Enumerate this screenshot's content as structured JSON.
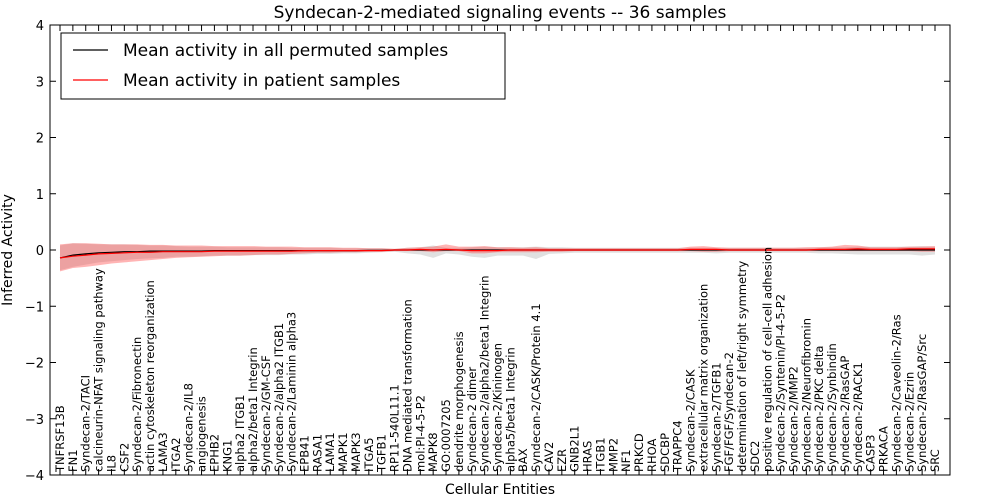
{
  "chart_data": {
    "type": "line",
    "title": "Syndecan-2-mediated signaling events -- 36 samples",
    "xlabel": "Cellular Entities",
    "ylabel": "Inferred Activity",
    "ylim": [
      -4,
      4
    ],
    "yticks": [
      "4",
      "3",
      "2",
      "1",
      "0",
      "−1",
      "−2",
      "−3",
      "−4"
    ],
    "categories": [
      "TNFRSF13B",
      "FN1",
      "Syndecan-2/TACI",
      "calcineurin-NFAT signaling pathway",
      "IL8",
      "CSF2",
      "Syndecan-2/Fibronectin",
      "actin cytoskeleton reorganization",
      "LAMA3",
      "ITGA2",
      "Syndecan-2/IL8",
      "angiogenesis",
      "EPHB2",
      "KNG1",
      "alpha2 ITGB1",
      "alpha2/beta1 Integrin",
      "Syndecan-2/GM-CSF",
      "Syndecan-2/alpha2 ITGB1",
      "Syndecan-2/Laminin alpha3",
      "EPB41",
      "RASA1",
      "LAMA1",
      "MAPK1",
      "MAPK3",
      "ITGA5",
      "TGFB1",
      "RP11-540L11.1",
      "DNA mediated transformation",
      "mol:PI-4-5-P2",
      "MAPK8",
      "GO:0007205",
      "dendrite morphogenesis",
      "Syndecan-2 dimer",
      "Syndecan-2/alpha2/beta1 Integrin",
      "Syndecan-2/Kininogen",
      "alpha5/beta1 Integrin",
      "BAX",
      "Syndecan-2/CASK/Protein 4.1",
      "CAV2",
      "EZR",
      "GNB2L1",
      "HRAS",
      "ITGB1",
      "MMP2",
      "NF1",
      "PRKCD",
      "RHOA",
      "SDCBP",
      "TRAPPC4",
      "Syndecan-2/CASK",
      "extracellular matrix organization",
      "Syndecan-2/TGFB1",
      "FGF/FGF/Syndecan-2",
      "determination of left/right symmetry",
      "SDC2",
      "positive regulation of cell-cell adhesion",
      "Syndecan-2/Syntenin/PI-4-5-P2",
      "Syndecan-2/MMP2",
      "Syndecan-2/Neurofibromin",
      "Syndecan-2/PKC delta",
      "Syndecan-2/Synbindin",
      "Syndecan-2/RasGAP",
      "Syndecan-2/RACK1",
      "CASP3",
      "PRKACA",
      "Syndecan-2/Caveolin-2/Ras",
      "Syndecan-2/Ezrin",
      "Syndecan-2/RasGAP/Src",
      "SRC"
    ],
    "series": [
      {
        "name": "Mean activity in all permuted samples",
        "color": "#000000",
        "values": [
          -0.14,
          -0.09,
          -0.07,
          -0.05,
          -0.04,
          -0.03,
          -0.03,
          -0.02,
          -0.02,
          -0.02,
          -0.02,
          -0.02,
          -0.01,
          -0.01,
          -0.01,
          -0.01,
          -0.01,
          -0.01,
          -0.01,
          -0.01,
          -0.01,
          -0.01,
          -0.01,
          -0.01,
          -0.005,
          -0.005,
          0.0,
          0.0,
          0.0,
          0.0,
          0.0,
          0.0,
          0.0,
          0.0,
          0.0,
          0.0,
          0.0,
          0.0,
          0.0,
          0.0,
          0.0,
          0.0,
          0.0,
          0.0,
          0.0,
          0.0,
          0.0,
          0.0,
          0.0,
          0.0,
          0.0,
          0.0,
          0.0,
          0.0,
          0.0,
          0.0,
          0.0,
          0.0,
          0.0,
          0.0,
          0.0,
          0.0,
          0.0,
          0.0,
          0.0,
          0.0,
          0.0,
          0.0,
          0.0
        ],
        "lower": [
          -0.36,
          -0.3,
          -0.26,
          -0.22,
          -0.2,
          -0.18,
          -0.16,
          -0.15,
          -0.14,
          -0.12,
          -0.12,
          -0.11,
          -0.1,
          -0.1,
          -0.1,
          -0.09,
          -0.09,
          -0.09,
          -0.08,
          -0.08,
          -0.07,
          -0.07,
          -0.06,
          -0.06,
          -0.05,
          -0.04,
          -0.03,
          -0.06,
          -0.08,
          -0.14,
          -0.06,
          -0.08,
          -0.12,
          -0.14,
          -0.1,
          -0.1,
          -0.1,
          -0.16,
          -0.07,
          -0.06,
          -0.05,
          -0.05,
          -0.05,
          -0.05,
          -0.05,
          -0.05,
          -0.05,
          -0.05,
          -0.05,
          -0.05,
          -0.05,
          -0.06,
          -0.05,
          -0.05,
          -0.05,
          -0.05,
          -0.05,
          -0.05,
          -0.05,
          -0.06,
          -0.06,
          -0.07,
          -0.08,
          -0.08,
          -0.08,
          -0.08,
          -0.08,
          -0.1,
          -0.08
        ],
        "upper": [
          0.08,
          0.12,
          0.11,
          0.1,
          0.1,
          0.1,
          0.09,
          0.08,
          0.08,
          0.07,
          0.06,
          0.06,
          0.06,
          0.05,
          0.05,
          0.05,
          0.05,
          0.05,
          0.04,
          0.04,
          0.04,
          0.04,
          0.03,
          0.03,
          0.03,
          0.03,
          0.02,
          0.04,
          0.05,
          0.08,
          0.04,
          0.04,
          0.05,
          0.06,
          0.05,
          0.05,
          0.05,
          0.06,
          0.05,
          0.05,
          0.04,
          0.04,
          0.04,
          0.04,
          0.04,
          0.04,
          0.04,
          0.04,
          0.04,
          0.04,
          0.04,
          0.04,
          0.04,
          0.04,
          0.04,
          0.04,
          0.04,
          0.04,
          0.04,
          0.05,
          0.05,
          0.05,
          0.06,
          0.06,
          0.06,
          0.06,
          0.06,
          0.07,
          0.06
        ]
      },
      {
        "name": "Mean activity in patient samples",
        "color": "#ff0000",
        "values": [
          -0.14,
          -0.11,
          -0.09,
          -0.07,
          -0.06,
          -0.05,
          -0.04,
          -0.04,
          -0.03,
          -0.03,
          -0.03,
          -0.03,
          -0.02,
          -0.02,
          -0.02,
          -0.02,
          -0.02,
          -0.02,
          -0.02,
          -0.01,
          -0.01,
          -0.01,
          -0.01,
          -0.01,
          -0.01,
          -0.01,
          0.0,
          0.0,
          0.01,
          0.0,
          0.01,
          0.0,
          -0.01,
          -0.01,
          -0.01,
          0.0,
          0.0,
          0.0,
          0.0,
          0.0,
          0.0,
          0.0,
          0.0,
          0.0,
          0.0,
          0.0,
          0.0,
          0.0,
          0.0,
          0.01,
          0.01,
          0.01,
          0.0,
          0.0,
          0.0,
          0.0,
          0.0,
          0.0,
          0.0,
          0.01,
          0.01,
          0.01,
          0.02,
          0.01,
          0.01,
          0.01,
          0.02,
          0.02,
          0.02
        ],
        "lower": [
          -0.38,
          -0.32,
          -0.3,
          -0.27,
          -0.24,
          -0.22,
          -0.2,
          -0.18,
          -0.16,
          -0.14,
          -0.13,
          -0.12,
          -0.11,
          -0.1,
          -0.1,
          -0.09,
          -0.08,
          -0.08,
          -0.07,
          -0.06,
          -0.05,
          -0.05,
          -0.04,
          -0.04,
          -0.03,
          -0.03,
          -0.02,
          -0.02,
          -0.02,
          -0.04,
          -0.02,
          -0.02,
          -0.06,
          -0.06,
          -0.04,
          -0.04,
          -0.04,
          -0.04,
          -0.03,
          -0.03,
          -0.02,
          -0.02,
          -0.02,
          -0.02,
          -0.02,
          -0.02,
          -0.02,
          -0.02,
          -0.02,
          -0.02,
          -0.03,
          -0.03,
          -0.02,
          -0.02,
          -0.02,
          -0.02,
          -0.02,
          -0.02,
          -0.02,
          -0.02,
          -0.02,
          -0.02,
          -0.02,
          -0.02,
          -0.02,
          -0.02,
          -0.02,
          -0.03,
          -0.03
        ],
        "upper": [
          0.1,
          0.12,
          0.12,
          0.11,
          0.1,
          0.1,
          0.1,
          0.09,
          0.09,
          0.08,
          0.08,
          0.08,
          0.07,
          0.07,
          0.07,
          0.07,
          0.06,
          0.06,
          0.06,
          0.05,
          0.05,
          0.05,
          0.04,
          0.04,
          0.03,
          0.03,
          0.02,
          0.04,
          0.05,
          0.06,
          0.1,
          0.06,
          0.06,
          0.07,
          0.05,
          0.05,
          0.04,
          0.05,
          0.03,
          0.03,
          0.03,
          0.03,
          0.03,
          0.03,
          0.03,
          0.03,
          0.03,
          0.03,
          0.03,
          0.06,
          0.07,
          0.05,
          0.04,
          0.04,
          0.04,
          0.04,
          0.04,
          0.04,
          0.05,
          0.05,
          0.06,
          0.09,
          0.08,
          0.05,
          0.05,
          0.05,
          0.06,
          0.06,
          0.07
        ]
      }
    ],
    "legend": {
      "location": "top-left",
      "entries": [
        "Mean activity in all permuted samples",
        "Mean activity in patient samples"
      ]
    },
    "band_colors": {
      "permuted": "#bbbbbb",
      "patient": "#ff4444"
    }
  }
}
